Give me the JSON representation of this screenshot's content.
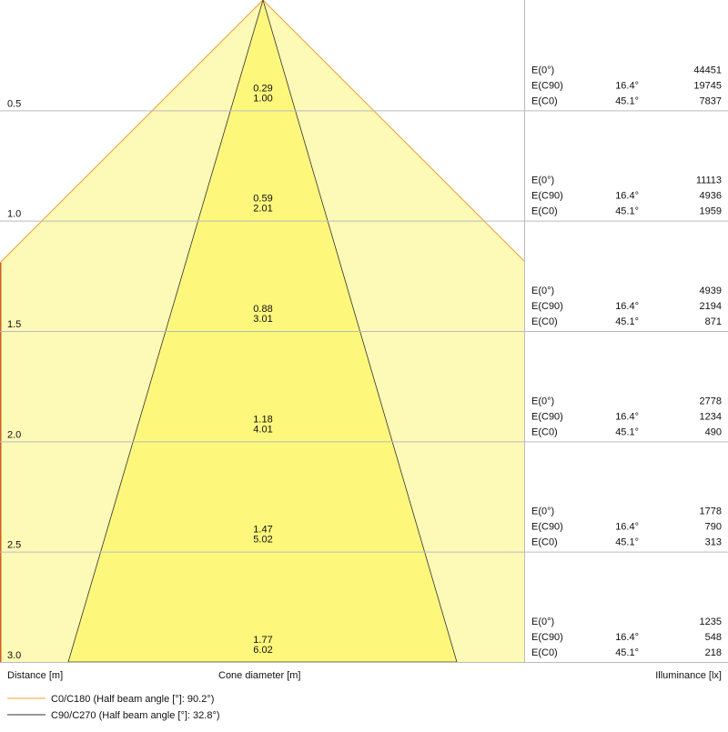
{
  "rows": [
    {
      "distance": "0.5",
      "c0_diameter": "0.29",
      "c90_diameter": "1.00",
      "illuminance": [
        {
          "label": "E(0°)",
          "angle": null,
          "value": "44451"
        },
        {
          "label": "E(C90)",
          "angle": "16.4°",
          "value": "19745"
        },
        {
          "label": "E(C0)",
          "angle": "45.1°",
          "value": "7837"
        }
      ]
    },
    {
      "distance": "1.0",
      "c0_diameter": "0.59",
      "c90_diameter": "2.01",
      "illuminance": [
        {
          "label": "E(0°)",
          "angle": null,
          "value": "11113"
        },
        {
          "label": "E(C90)",
          "angle": "16.4°",
          "value": "4936"
        },
        {
          "label": "E(C0)",
          "angle": "45.1°",
          "value": "1959"
        }
      ]
    },
    {
      "distance": "1.5",
      "c0_diameter": "0.88",
      "c90_diameter": "3.01",
      "illuminance": [
        {
          "label": "E(0°)",
          "angle": null,
          "value": "4939"
        },
        {
          "label": "E(C90)",
          "angle": "16.4°",
          "value": "2194"
        },
        {
          "label": "E(C0)",
          "angle": "45.1°",
          "value": "871"
        }
      ]
    },
    {
      "distance": "2.0",
      "c0_diameter": "1.18",
      "c90_diameter": "4.01",
      "illuminance": [
        {
          "label": "E(0°)",
          "angle": null,
          "value": "2778"
        },
        {
          "label": "E(C90)",
          "angle": "16.4°",
          "value": "1234"
        },
        {
          "label": "E(C0)",
          "angle": "45.1°",
          "value": "490"
        }
      ]
    },
    {
      "distance": "2.5",
      "c0_diameter": "1.47",
      "c90_diameter": "5.02",
      "illuminance": [
        {
          "label": "E(0°)",
          "angle": null,
          "value": "1778"
        },
        {
          "label": "E(C90)",
          "angle": "16.4°",
          "value": "790"
        },
        {
          "label": "E(C0)",
          "angle": "45.1°",
          "value": "313"
        }
      ]
    },
    {
      "distance": "3.0",
      "c0_diameter": "1.77",
      "c90_diameter": "6.02",
      "illuminance": [
        {
          "label": "E(0°)",
          "angle": null,
          "value": "1235"
        },
        {
          "label": "E(C90)",
          "angle": "16.4°",
          "value": "548"
        },
        {
          "label": "E(C0)",
          "angle": "45.1°",
          "value": "218"
        }
      ]
    }
  ],
  "footer": {
    "distance_label": "Distance [m]",
    "diameter_label": "Cone diameter [m]",
    "illuminance_label": "Illuminance [lx]"
  },
  "legend": [
    {
      "label": "C0/C180 (Half beam angle [°]: 90.2°)",
      "color": "#f0a030"
    },
    {
      "label": "C90/C270 (Half beam angle [°]: 32.8°)",
      "color": "#333333"
    }
  ]
}
